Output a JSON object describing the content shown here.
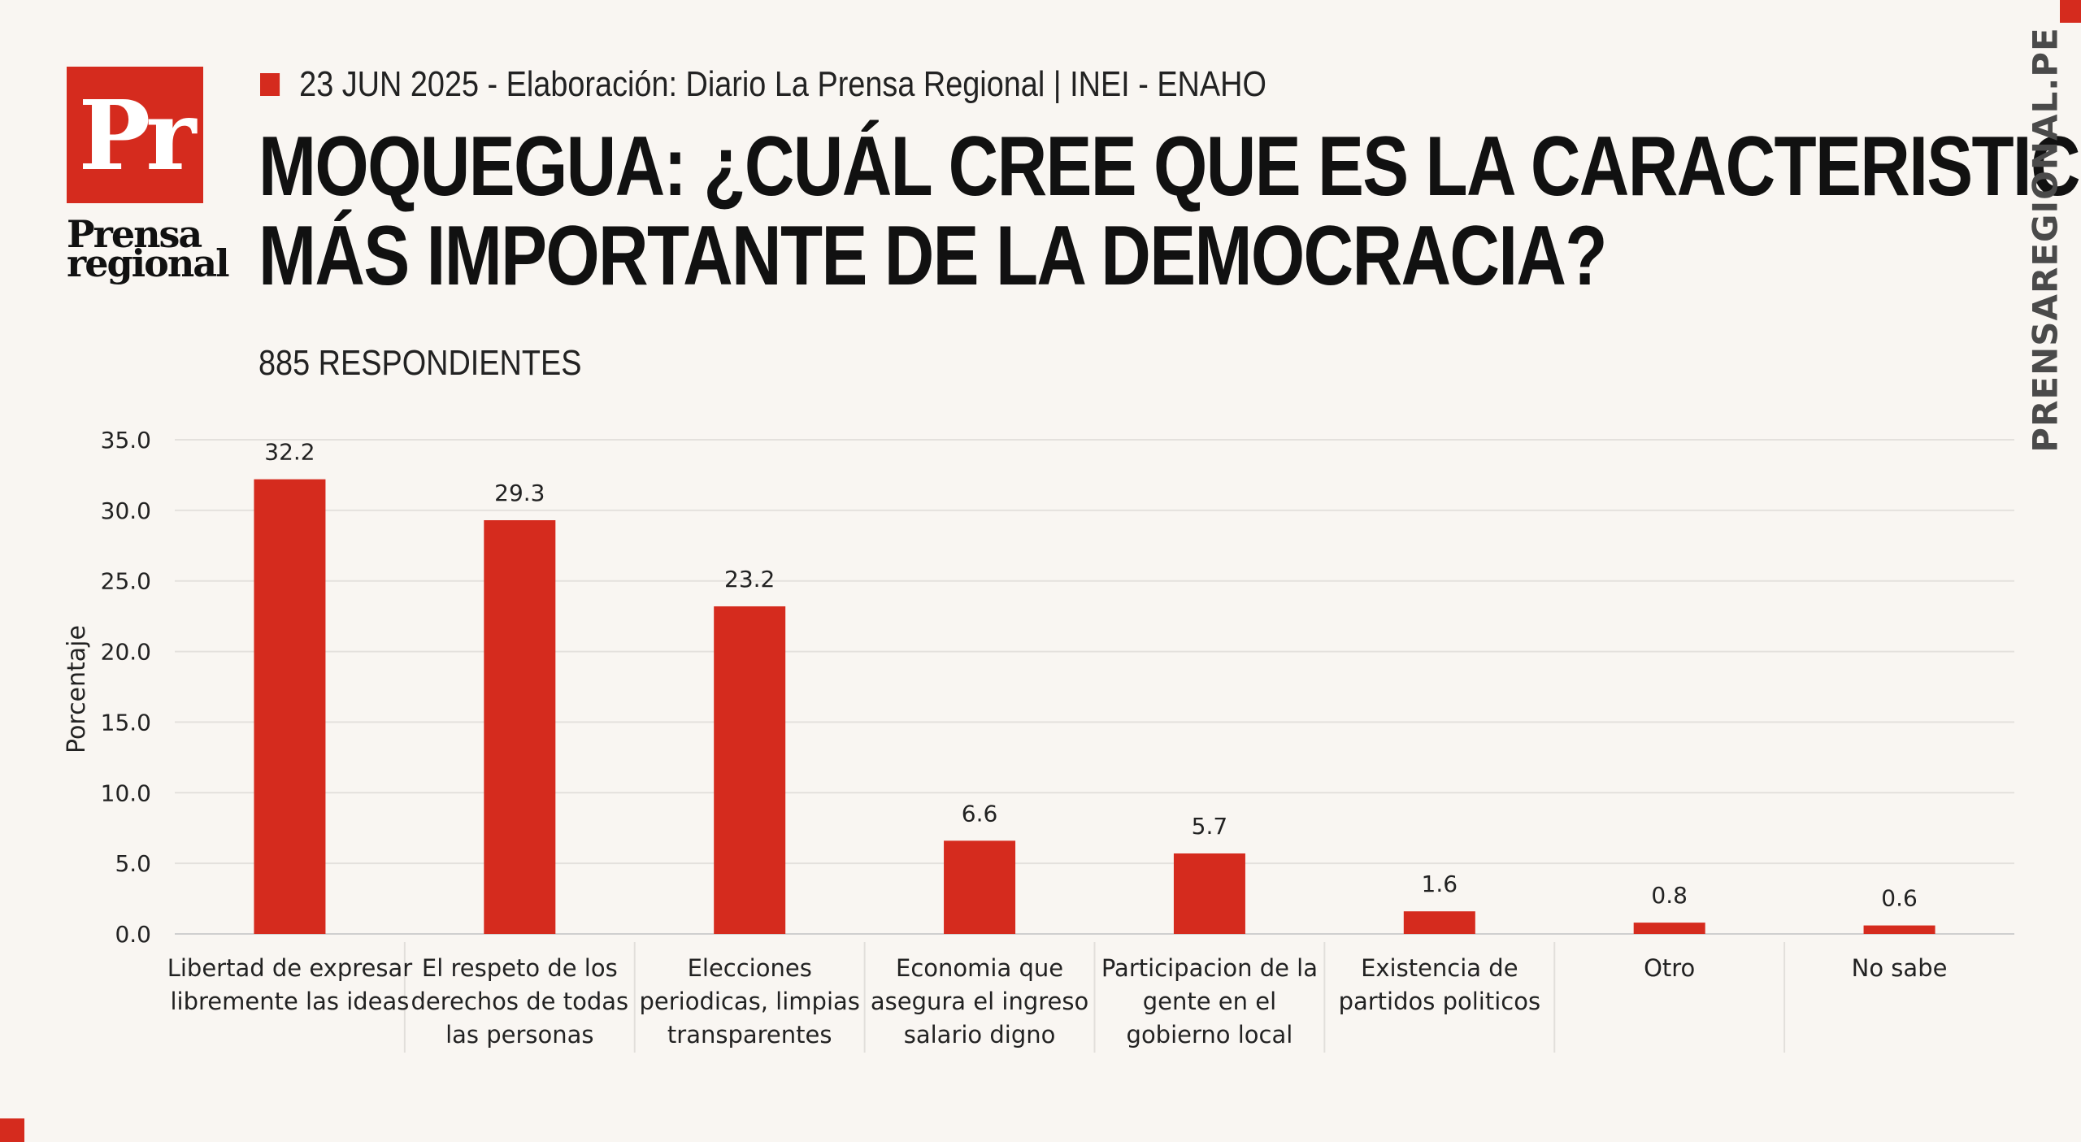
{
  "brand": {
    "logo_letters": "Pr",
    "logo_word_1": "Prensa",
    "logo_word_2": "regional",
    "side_text": "PRENSAREGIONAL.PE",
    "accent_color": "#d52b1e"
  },
  "header": {
    "date_source": "23 JUN 2025 -  Elaboración: Diario La Prensa Regional | INEI - ENAHO"
  },
  "chart_data": {
    "type": "bar",
    "title_line_1": "MOQUEGUA: ¿CUÁL CREE QUE ES LA CARACTERISTICA",
    "title_line_2": "MÁS IMPORTANTE DE LA DEMOCRACIA?",
    "subtitle": "885 RESPONDIENTES",
    "ylabel": "Porcentaje",
    "xlabel": "",
    "ylim": [
      0,
      35
    ],
    "yticks": [
      "0.0",
      "5.0",
      "10.0",
      "15.0",
      "20.0",
      "25.0",
      "30.0",
      "35.0"
    ],
    "grid": true,
    "bar_color": "#d52b1e",
    "categories": [
      [
        "Libertad de expresar",
        "libremente las ideas"
      ],
      [
        "El respeto de los",
        "derechos de todas",
        "las personas"
      ],
      [
        "Elecciones",
        "periodicas, limpias",
        "transparentes"
      ],
      [
        "Economia que",
        "asegura el ingreso",
        "salario digno"
      ],
      [
        "Participacion de la",
        "gente en el",
        "gobierno local"
      ],
      [
        "Existencia de",
        "partidos politicos"
      ],
      [
        "Otro"
      ],
      [
        "No sabe"
      ]
    ],
    "values": [
      32.2,
      29.3,
      23.2,
      6.6,
      5.7,
      1.6,
      0.8,
      0.6
    ],
    "value_labels": [
      "32.2",
      "29.3",
      "23.2",
      "6.6",
      "5.7",
      "1.6",
      "0.8",
      "0.6"
    ]
  }
}
